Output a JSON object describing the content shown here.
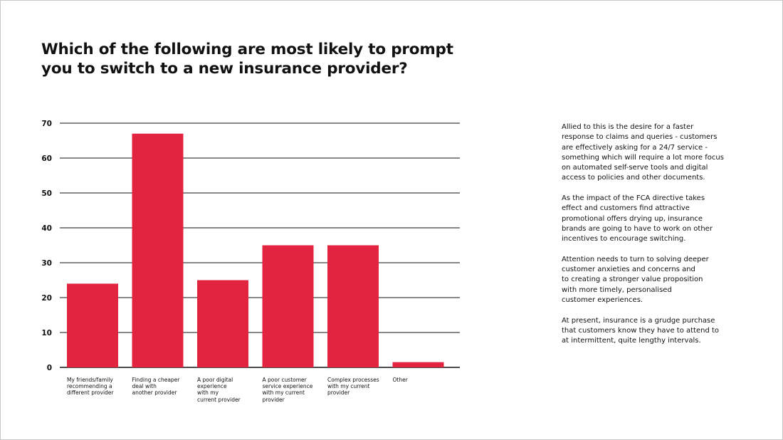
{
  "title": "Which of the following are most likely to prompt\nyou to switch to a new insurance provider?",
  "colors": {
    "bar": "#e32440",
    "grid": "#111111"
  },
  "chart_data": {
    "type": "bar",
    "title": "Which of the following are most likely to prompt you to switch to a new insurance provider?",
    "categories": [
      "My friends/family\nrecommending a\ndifferent provider",
      "Finding a cheaper\ndeal with\nanother provider",
      "A poor digital\nexperience\nwith my\ncurrent provider",
      "A poor customer\nservice experience\nwith my current\nprovider",
      "Complex processes\nwith my current\nprovider",
      "Other"
    ],
    "values": [
      24,
      67,
      25,
      35,
      35,
      1.5
    ],
    "yticks": [
      "0",
      "10",
      "20",
      "30",
      "40",
      "50",
      "60",
      "70"
    ],
    "ylim": [
      0,
      70
    ],
    "xlabel": "",
    "ylabel": "",
    "grid": true
  },
  "side_text": {
    "paragraphs": [
      "Allied to this is the desire for a faster\nresponse to claims and queries - customers\nare effectively asking for a 24/7 service -\nsomething which will require a lot more focus\non automated self-serve tools and digital\naccess to policies and other documents.",
      "As the impact of the FCA directive takes\neffect and customers find attractive\npromotional offers drying up, insurance\nbrands are going to have to work on other\nincentives to encourage switching.",
      "Attention needs to turn to solving deeper\ncustomer anxieties and concerns and\nto creating a stronger value proposition\nwith more timely, personalised\ncustomer experiences.",
      "At present, insurance is a grudge purchase\nthat customers know they have to attend to\nat intermittent, quite lengthy intervals."
    ]
  }
}
